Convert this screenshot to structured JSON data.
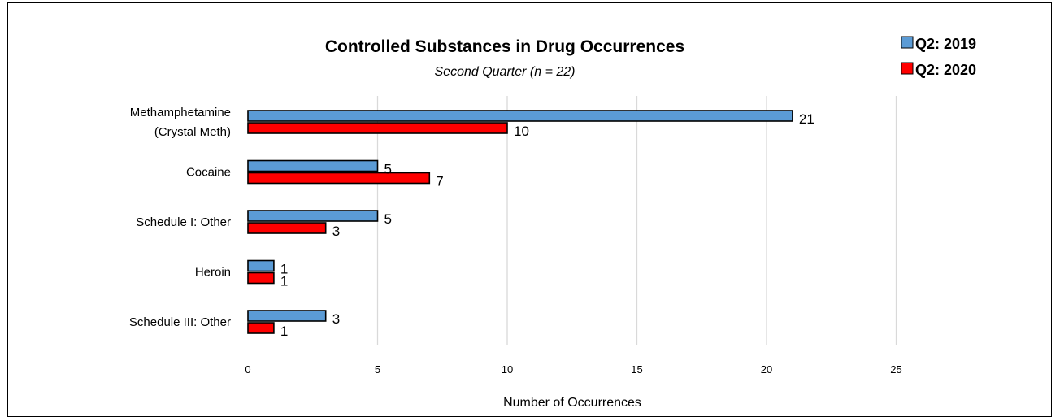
{
  "chart_data": {
    "type": "bar",
    "orientation": "horizontal",
    "title": "Controlled Substances in Drug Occurrences",
    "subtitle": "Second Quarter (n = 22)",
    "categories": [
      [
        "Methamphetamine",
        "(Crystal Meth)"
      ],
      [
        "Cocaine"
      ],
      [
        "Schedule I: Other"
      ],
      [
        "Heroin"
      ],
      [
        "Schedule III: Other"
      ]
    ],
    "series": [
      {
        "name": "Q2: 2019",
        "values": [
          21,
          5,
          5,
          1,
          3
        ],
        "color": "#5B9BD5"
      },
      {
        "name": "Q2: 2020",
        "values": [
          10,
          7,
          3,
          1,
          1
        ],
        "color": "#FF0000"
      }
    ],
    "xlabel": "Number of Occurrences",
    "ylabel": "",
    "xlim": [
      0,
      25
    ],
    "xticks": [
      0,
      5,
      10,
      15,
      20,
      25
    ],
    "grid": true,
    "legend_position": "top-right",
    "data_labels": true
  }
}
